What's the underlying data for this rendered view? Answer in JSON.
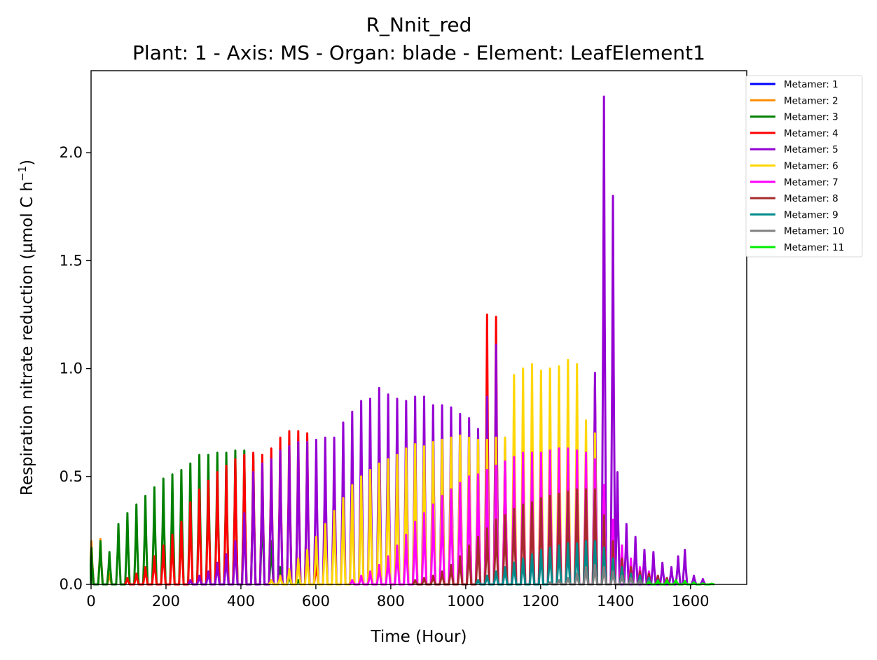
{
  "chart_data": {
    "type": "line",
    "title": "R_Nnit_red",
    "subtitle": "Plant: 1 - Axis: MS - Organ: blade - Element: LeafElement1",
    "xlabel": "Time (Hour)",
    "ylabel_main": "Respiration nitrate reduction (µmol C h",
    "ylabel_sup": "−1",
    "ylabel_close": ")",
    "xlim": [
      0,
      1750
    ],
    "ylim": [
      0,
      2.38
    ],
    "x_ticks": [
      0,
      200,
      400,
      600,
      800,
      1000,
      1200,
      1400,
      1600
    ],
    "x_tick_labels": [
      "0",
      "200",
      "400",
      "600",
      "800",
      "1000",
      "1200",
      "1400",
      "1600"
    ],
    "y_ticks": [
      0,
      0.5,
      1.0,
      1.5,
      2.0
    ],
    "y_tick_labels": [
      "0.0",
      "0.5",
      "1.0",
      "1.5",
      "2.0"
    ],
    "grid": false,
    "legend_position": "outside-right-top",
    "period_hours": 24,
    "series": [
      {
        "name": "Metamer: 1",
        "color": "#0000ff",
        "peaks": [
          [
            1,
            0.17
          ]
        ]
      },
      {
        "name": "Metamer: 2",
        "color": "#ff8c00",
        "peaks": [
          [
            1,
            0.2
          ],
          [
            25,
            0.21
          ],
          [
            49,
            0.05
          ]
        ]
      },
      {
        "name": "Metamer: 3",
        "color": "#008000",
        "peaks": [
          [
            1,
            0.17
          ],
          [
            25,
            0.2
          ],
          [
            49,
            0.15
          ],
          [
            73,
            0.28
          ],
          [
            97,
            0.33
          ],
          [
            121,
            0.37
          ],
          [
            145,
            0.41
          ],
          [
            169,
            0.45
          ],
          [
            193,
            0.49
          ],
          [
            217,
            0.51
          ],
          [
            241,
            0.53
          ],
          [
            265,
            0.56
          ],
          [
            289,
            0.6
          ],
          [
            313,
            0.6
          ],
          [
            337,
            0.61
          ],
          [
            361,
            0.61
          ],
          [
            385,
            0.62
          ],
          [
            409,
            0.62
          ],
          [
            433,
            0.6
          ],
          [
            457,
            0.4
          ],
          [
            481,
            0.2
          ],
          [
            505,
            0.08
          ],
          [
            529,
            0.04
          ],
          [
            553,
            0.02
          ],
          [
            1537,
            0.02
          ],
          [
            1561,
            0.02
          ],
          [
            1585,
            0.015
          ],
          [
            1609,
            0.01
          ],
          [
            1633,
            0.005
          ],
          [
            1657,
            0.003
          ]
        ]
      },
      {
        "name": "Metamer: 4",
        "color": "#ff0000",
        "peaks": [
          [
            97,
            0.03
          ],
          [
            121,
            0.05
          ],
          [
            145,
            0.08
          ],
          [
            169,
            0.13
          ],
          [
            193,
            0.18
          ],
          [
            217,
            0.23
          ],
          [
            241,
            0.29
          ],
          [
            265,
            0.38
          ],
          [
            289,
            0.44
          ],
          [
            313,
            0.48
          ],
          [
            337,
            0.52
          ],
          [
            361,
            0.55
          ],
          [
            385,
            0.58
          ],
          [
            409,
            0.6
          ],
          [
            433,
            0.61
          ],
          [
            457,
            0.6
          ],
          [
            481,
            0.63
          ],
          [
            505,
            0.68
          ],
          [
            529,
            0.71
          ],
          [
            553,
            0.71
          ],
          [
            577,
            0.7
          ],
          [
            601,
            0.1
          ],
          [
            1057,
            1.25
          ],
          [
            1081,
            1.24
          ],
          [
            1345,
            0.92
          ],
          [
            1369,
            0.25
          ],
          [
            1393,
            0.12
          ],
          [
            1417,
            0.09
          ],
          [
            1441,
            0.07
          ],
          [
            1465,
            0.05
          ],
          [
            1489,
            0.04
          ],
          [
            1513,
            0.03
          ],
          [
            1537,
            0.02
          ],
          [
            1561,
            0.015
          ],
          [
            1585,
            0.01
          ]
        ]
      },
      {
        "name": "Metamer: 5",
        "color": "#9400d3",
        "peaks": [
          [
            265,
            0.02
          ],
          [
            289,
            0.04
          ],
          [
            313,
            0.06
          ],
          [
            337,
            0.1
          ],
          [
            361,
            0.14
          ],
          [
            385,
            0.2
          ],
          [
            409,
            0.33
          ],
          [
            433,
            0.52
          ],
          [
            457,
            0.56
          ],
          [
            481,
            0.58
          ],
          [
            505,
            0.62
          ],
          [
            529,
            0.64
          ],
          [
            553,
            0.66
          ],
          [
            577,
            0.66
          ],
          [
            601,
            0.67
          ],
          [
            625,
            0.68
          ],
          [
            649,
            0.68
          ],
          [
            673,
            0.75
          ],
          [
            697,
            0.8
          ],
          [
            721,
            0.85
          ],
          [
            745,
            0.86
          ],
          [
            769,
            0.91
          ],
          [
            793,
            0.88
          ],
          [
            817,
            0.86
          ],
          [
            841,
            0.85
          ],
          [
            865,
            0.87
          ],
          [
            889,
            0.87
          ],
          [
            913,
            0.83
          ],
          [
            937,
            0.83
          ],
          [
            961,
            0.82
          ],
          [
            985,
            0.79
          ],
          [
            1009,
            0.77
          ],
          [
            1033,
            0.72
          ],
          [
            1057,
            0.87
          ],
          [
            1081,
            1.11
          ],
          [
            1105,
            0.68
          ],
          [
            1129,
            0.62
          ],
          [
            1153,
            0.58
          ],
          [
            1177,
            0.56
          ],
          [
            1201,
            0.55
          ],
          [
            1225,
            0.54
          ],
          [
            1249,
            0.53
          ],
          [
            1273,
            0.52
          ],
          [
            1297,
            0.51
          ],
          [
            1321,
            0.5
          ],
          [
            1345,
            0.98
          ],
          [
            1369,
            2.26
          ],
          [
            1393,
            1.8
          ],
          [
            1405,
            0.52
          ],
          [
            1429,
            0.28
          ],
          [
            1453,
            0.22
          ],
          [
            1477,
            0.16
          ],
          [
            1501,
            0.15
          ],
          [
            1525,
            0.1
          ],
          [
            1549,
            0.08
          ],
          [
            1567,
            0.13
          ],
          [
            1585,
            0.16
          ],
          [
            1609,
            0.04
          ],
          [
            1633,
            0.025
          ]
        ]
      },
      {
        "name": "Metamer: 6",
        "color": "#ffd700",
        "peaks": [
          [
            481,
            0.02
          ],
          [
            505,
            0.04
          ],
          [
            529,
            0.07
          ],
          [
            553,
            0.12
          ],
          [
            577,
            0.16
          ],
          [
            601,
            0.22
          ],
          [
            625,
            0.28
          ],
          [
            649,
            0.34
          ],
          [
            673,
            0.4
          ],
          [
            697,
            0.46
          ],
          [
            721,
            0.5
          ],
          [
            745,
            0.53
          ],
          [
            769,
            0.56
          ],
          [
            793,
            0.58
          ],
          [
            817,
            0.6
          ],
          [
            841,
            0.63
          ],
          [
            865,
            0.65
          ],
          [
            889,
            0.64
          ],
          [
            913,
            0.66
          ],
          [
            937,
            0.67
          ],
          [
            961,
            0.68
          ],
          [
            985,
            0.69
          ],
          [
            1009,
            0.68
          ],
          [
            1033,
            0.67
          ],
          [
            1057,
            0.67
          ],
          [
            1081,
            0.68
          ],
          [
            1105,
            0.68
          ],
          [
            1129,
            0.97
          ],
          [
            1153,
            1.0
          ],
          [
            1177,
            1.02
          ],
          [
            1201,
            0.99
          ],
          [
            1225,
            1.0
          ],
          [
            1249,
            1.01
          ],
          [
            1273,
            1.04
          ],
          [
            1297,
            1.02
          ],
          [
            1321,
            0.76
          ],
          [
            1345,
            0.7
          ],
          [
            1369,
            0.45
          ],
          [
            1393,
            0.25
          ],
          [
            1417,
            0.15
          ],
          [
            1441,
            0.1
          ],
          [
            1465,
            0.06
          ],
          [
            1489,
            0.04
          ],
          [
            1513,
            0.02
          ]
        ]
      },
      {
        "name": "Metamer: 7",
        "color": "#ff00ff",
        "peaks": [
          [
            697,
            0.02
          ],
          [
            721,
            0.04
          ],
          [
            745,
            0.06
          ],
          [
            769,
            0.09
          ],
          [
            793,
            0.13
          ],
          [
            817,
            0.18
          ],
          [
            841,
            0.23
          ],
          [
            865,
            0.29
          ],
          [
            889,
            0.33
          ],
          [
            913,
            0.37
          ],
          [
            937,
            0.41
          ],
          [
            961,
            0.44
          ],
          [
            985,
            0.47
          ],
          [
            1009,
            0.5
          ],
          [
            1033,
            0.51
          ],
          [
            1057,
            0.53
          ],
          [
            1081,
            0.55
          ],
          [
            1105,
            0.57
          ],
          [
            1129,
            0.59
          ],
          [
            1153,
            0.61
          ],
          [
            1177,
            0.61
          ],
          [
            1201,
            0.61
          ],
          [
            1225,
            0.62
          ],
          [
            1249,
            0.63
          ],
          [
            1273,
            0.63
          ],
          [
            1297,
            0.62
          ],
          [
            1321,
            0.61
          ],
          [
            1345,
            0.58
          ],
          [
            1369,
            0.46
          ],
          [
            1393,
            0.3
          ],
          [
            1417,
            0.18
          ],
          [
            1441,
            0.12
          ],
          [
            1465,
            0.08
          ],
          [
            1489,
            0.06
          ],
          [
            1513,
            0.04
          ],
          [
            1537,
            0.03
          ],
          [
            1561,
            0.02
          ]
        ]
      },
      {
        "name": "Metamer: 8",
        "color": "#a52a2a",
        "peaks": [
          [
            865,
            0.02
          ],
          [
            889,
            0.03
          ],
          [
            913,
            0.04
          ],
          [
            937,
            0.06
          ],
          [
            961,
            0.09
          ],
          [
            985,
            0.13
          ],
          [
            1009,
            0.18
          ],
          [
            1033,
            0.22
          ],
          [
            1057,
            0.26
          ],
          [
            1081,
            0.3
          ],
          [
            1105,
            0.32
          ],
          [
            1129,
            0.35
          ],
          [
            1153,
            0.37
          ],
          [
            1177,
            0.38
          ],
          [
            1201,
            0.4
          ],
          [
            1225,
            0.41
          ],
          [
            1249,
            0.42
          ],
          [
            1273,
            0.43
          ],
          [
            1297,
            0.44
          ],
          [
            1321,
            0.44
          ],
          [
            1345,
            0.44
          ],
          [
            1369,
            0.32
          ],
          [
            1393,
            0.2
          ],
          [
            1417,
            0.12
          ],
          [
            1441,
            0.08
          ],
          [
            1465,
            0.06
          ],
          [
            1489,
            0.05
          ],
          [
            1513,
            0.04
          ],
          [
            1537,
            0.03
          ],
          [
            1561,
            0.02
          ],
          [
            1585,
            0.015
          ]
        ]
      },
      {
        "name": "Metamer: 9",
        "color": "#008b8b",
        "peaks": [
          [
            1033,
            0.02
          ],
          [
            1057,
            0.04
          ],
          [
            1081,
            0.06
          ],
          [
            1105,
            0.08
          ],
          [
            1129,
            0.1
          ],
          [
            1153,
            0.12
          ],
          [
            1177,
            0.14
          ],
          [
            1201,
            0.16
          ],
          [
            1225,
            0.17
          ],
          [
            1249,
            0.18
          ],
          [
            1273,
            0.19
          ],
          [
            1297,
            0.19
          ],
          [
            1321,
            0.2
          ],
          [
            1345,
            0.2
          ],
          [
            1369,
            0.17
          ],
          [
            1393,
            0.12
          ],
          [
            1417,
            0.08
          ],
          [
            1441,
            0.05
          ],
          [
            1465,
            0.04
          ],
          [
            1489,
            0.03
          ],
          [
            1513,
            0.02
          ],
          [
            1537,
            0.015
          ]
        ]
      },
      {
        "name": "Metamer: 10",
        "color": "#808080",
        "peaks": [
          [
            1225,
            0.01
          ],
          [
            1249,
            0.02
          ],
          [
            1273,
            0.03
          ],
          [
            1297,
            0.05
          ],
          [
            1321,
            0.08
          ],
          [
            1345,
            0.09
          ],
          [
            1369,
            0.08
          ],
          [
            1393,
            0.06
          ],
          [
            1417,
            0.04
          ],
          [
            1441,
            0.03
          ],
          [
            1465,
            0.02
          ],
          [
            1489,
            0.015
          ]
        ]
      },
      {
        "name": "Metamer: 11",
        "color": "#00ee00",
        "peaks": [
          [
            1489,
            0.01
          ],
          [
            1513,
            0.015
          ],
          [
            1537,
            0.02
          ],
          [
            1561,
            0.02
          ],
          [
            1585,
            0.015
          ],
          [
            1609,
            0.01
          ],
          [
            1633,
            0.005
          ],
          [
            1657,
            0.003
          ]
        ]
      }
    ]
  }
}
